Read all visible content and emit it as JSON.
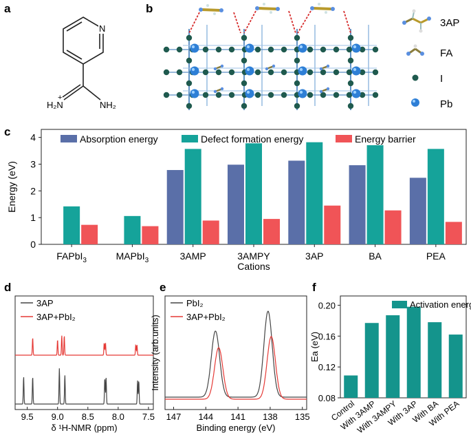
{
  "panels": {
    "a": {
      "label": "a",
      "atoms": {
        "n_ring": "N",
        "h2n_plus": "H₂N",
        "plus": "+",
        "nh2": "NH₂"
      }
    },
    "b": {
      "label": "b",
      "legend": [
        {
          "name": "3AP",
          "icon": "3ap-molecule-icon"
        },
        {
          "name": "FA",
          "icon": "fa-molecule-icon"
        },
        {
          "name": "I",
          "icon": "iodine-atom-icon",
          "color": "#1f5a4e"
        },
        {
          "name": "Pb",
          "icon": "lead-atom-icon",
          "color": "#2e7fd6"
        }
      ]
    },
    "c": {
      "label": "c"
    },
    "d": {
      "label": "d"
    },
    "e": {
      "label": "e"
    },
    "f": {
      "label": "f"
    }
  },
  "chart_data": [
    {
      "id": "c",
      "type": "bar",
      "title": "",
      "xlabel": "Cations",
      "ylabel": "Energy (eV)",
      "ylim": [
        0,
        4.3
      ],
      "yticks": [
        "0",
        "1",
        "2",
        "3",
        "4"
      ],
      "categories": [
        "FAPbI3",
        "MAPbI3",
        "3AMP",
        "3AMPY",
        "3AP",
        "BA",
        "PEA"
      ],
      "series": [
        {
          "name": "Absorption energy",
          "color": "#5a6fa8",
          "values": [
            null,
            null,
            2.78,
            2.98,
            3.13,
            2.96,
            2.49
          ]
        },
        {
          "name": "Defect formation energy",
          "color": "#15a39a",
          "values": [
            1.42,
            1.06,
            3.57,
            3.78,
            3.82,
            3.71,
            3.57
          ]
        },
        {
          "name": "Energy barrier",
          "color": "#f05457",
          "values": [
            0.73,
            0.68,
            0.89,
            0.95,
            1.45,
            1.27,
            0.84
          ]
        }
      ]
    },
    {
      "id": "d",
      "type": "line",
      "xlabel": "δ ¹H-NMR (ppm)",
      "xlim": [
        9.7,
        7.42
      ],
      "xticks": [
        "9.5",
        "9.0",
        "8.5",
        "8.0",
        "7.5"
      ],
      "legend": [
        "3AP",
        "3AP+PbI₂"
      ],
      "series": [
        {
          "name": "3AP",
          "color": "#444444",
          "peaks": [
            [
              9.56,
              1.0
            ],
            [
              9.41,
              1.0
            ],
            [
              8.97,
              1.3
            ],
            [
              8.88,
              1.05
            ],
            [
              8.22,
              0.95
            ],
            [
              8.2,
              0.95
            ],
            [
              7.68,
              0.85
            ],
            [
              7.66,
              0.85
            ]
          ]
        },
        {
          "name": "3AP+PbI₂",
          "color": "#e53935",
          "peaks": [
            [
              9.41,
              0.85
            ],
            [
              9.0,
              0.75
            ],
            [
              8.93,
              0.95
            ],
            [
              8.89,
              0.95
            ],
            [
              8.23,
              0.6
            ],
            [
              8.21,
              0.6
            ],
            [
              7.71,
              0.5
            ],
            [
              7.69,
              0.5
            ]
          ]
        }
      ]
    },
    {
      "id": "e",
      "type": "line",
      "xlabel": "Binding energy (eV)",
      "ylabel": "Intensity (arb.units)",
      "xlim": [
        147.8,
        134.6
      ],
      "xticks": [
        "147",
        "144",
        "141",
        "138",
        "135"
      ],
      "legend": [
        "PbI₂",
        "3AP+PbI₂"
      ],
      "series": [
        {
          "name": "PbI₂",
          "color": "#444444",
          "peaks": [
            [
              143.1,
              1.0
            ],
            [
              138.2,
              1.3
            ]
          ]
        },
        {
          "name": "3AP+PbI₂",
          "color": "#e53935",
          "peaks": [
            [
              142.8,
              0.78
            ],
            [
              137.9,
              0.95
            ]
          ]
        }
      ]
    },
    {
      "id": "f",
      "type": "bar",
      "ylabel": "Ea (eV)",
      "ylim": [
        0.08,
        0.212
      ],
      "yticks": [
        "0.08",
        "0.12",
        "0.16",
        "0.20"
      ],
      "legend": [
        "Activation energy"
      ],
      "categories": [
        "Control",
        "With 3AMP",
        "With 3AMPY",
        "With 3AP",
        "With BA",
        "With PEA"
      ],
      "series": [
        {
          "name": "Activation energy",
          "color": "#14948c",
          "values": [
            0.109,
            0.177,
            0.187,
            0.198,
            0.178,
            0.162
          ]
        }
      ]
    }
  ]
}
